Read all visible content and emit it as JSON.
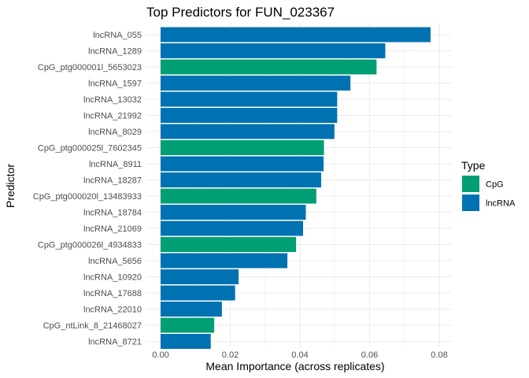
{
  "chart_data": {
    "type": "bar",
    "orientation": "horizontal",
    "title": "Top Predictors for FUN_023367",
    "xlabel": "Mean Importance (across replicates)",
    "ylabel": "Predictor",
    "xlim": [
      0,
      0.08
    ],
    "x_ticks": [
      "0.00",
      "0.02",
      "0.04",
      "0.06",
      "0.08"
    ],
    "grid": true,
    "legend": {
      "title": "Type",
      "position": "right",
      "items": [
        {
          "label": "CpG",
          "color": "#009E73"
        },
        {
          "label": "lncRNA",
          "color": "#0072B2"
        }
      ]
    },
    "categories": [
      "lncRNA_055",
      "lncRNA_1289",
      "CpG_ptg000001l_5653023",
      "lncRNA_1597",
      "lncRNA_13032",
      "lncRNA_21992",
      "lncRNA_8029",
      "CpG_ptg000025l_7602345",
      "lncRNA_8911",
      "lncRNA_18287",
      "CpG_ptg000020l_13483933",
      "lncRNA_18784",
      "lncRNA_21069",
      "CpG_ptg000026l_4934833",
      "lncRNA_5656",
      "lncRNA_10920",
      "lncRNA_17688",
      "lncRNA_22010",
      "CpG_ntLink_8_21468027",
      "lncRNA_8721"
    ],
    "values": [
      0.0775,
      0.0645,
      0.062,
      0.0545,
      0.0507,
      0.0507,
      0.0499,
      0.0469,
      0.0468,
      0.0461,
      0.0447,
      0.0417,
      0.0409,
      0.0389,
      0.0364,
      0.0224,
      0.0214,
      0.0176,
      0.0154,
      0.0144
    ],
    "types": [
      "lncRNA",
      "lncRNA",
      "CpG",
      "lncRNA",
      "lncRNA",
      "lncRNA",
      "lncRNA",
      "CpG",
      "lncRNA",
      "lncRNA",
      "CpG",
      "lncRNA",
      "lncRNA",
      "CpG",
      "lncRNA",
      "lncRNA",
      "lncRNA",
      "lncRNA",
      "CpG",
      "lncRNA"
    ]
  }
}
